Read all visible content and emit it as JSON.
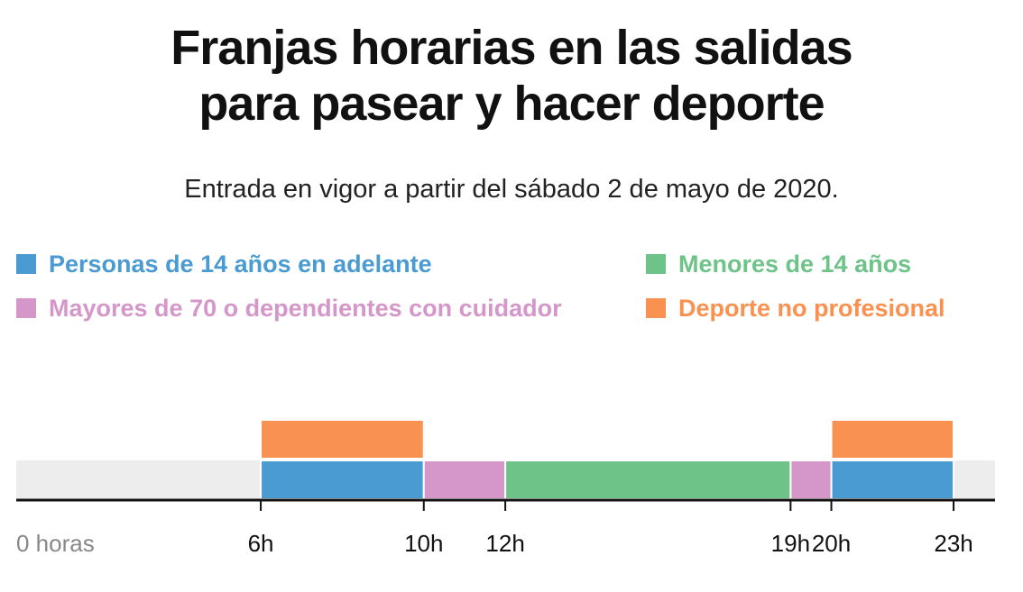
{
  "title": {
    "line1": "Franjas horarias en las salidas",
    "line2": "para pasear y hacer deporte"
  },
  "subtitle": "Entrada en vigor a partir del sábado 2 de mayo de 2020.",
  "colors": {
    "blue": "#4a9bd1",
    "green": "#6ec388",
    "pink": "#d596c9",
    "orange": "#f99251",
    "track": "#ededed",
    "axis": "#111111",
    "first_label": "#888888"
  },
  "legend": [
    {
      "label": "Personas de 14 años en adelante",
      "color": "#4a9bd1"
    },
    {
      "label": "Menores de 14 años",
      "color": "#6ec388"
    },
    {
      "label": "Mayores de 70 o dependientes con cuidador",
      "color": "#d596c9"
    },
    {
      "label": "Deporte no profesional",
      "color": "#f99251"
    }
  ],
  "chart_data": {
    "type": "bar",
    "x_unit": "hours",
    "xlim": [
      0,
      24
    ],
    "ticks": [
      {
        "value": 0,
        "label": "0 horas"
      },
      {
        "value": 6,
        "label": "6h"
      },
      {
        "value": 10,
        "label": "10h"
      },
      {
        "value": 12,
        "label": "12h"
      },
      {
        "value": 19,
        "label": "19h"
      },
      {
        "value": 20,
        "label": "20h"
      },
      {
        "value": 23,
        "label": "23h"
      }
    ],
    "series": [
      {
        "name": "Personas de 14 años en adelante",
        "color": "#4a9bd1",
        "row": "main",
        "segments": [
          [
            6,
            10
          ],
          [
            20,
            23
          ]
        ]
      },
      {
        "name": "Mayores de 70 o dependientes con cuidador",
        "color": "#d596c9",
        "row": "main",
        "segments": [
          [
            10,
            12
          ],
          [
            19,
            20
          ]
        ]
      },
      {
        "name": "Menores de 14 años",
        "color": "#6ec388",
        "row": "main",
        "segments": [
          [
            12,
            19
          ]
        ]
      },
      {
        "name": "Deporte no profesional",
        "color": "#f99251",
        "row": "top",
        "segments": [
          [
            6,
            10
          ],
          [
            20,
            23
          ]
        ]
      }
    ]
  }
}
